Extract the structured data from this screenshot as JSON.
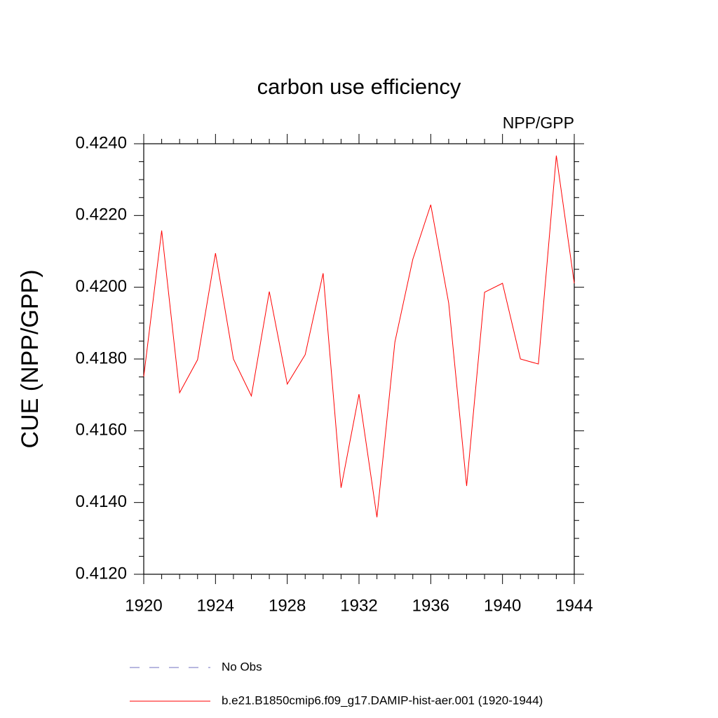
{
  "chart_data": {
    "type": "line",
    "title": "carbon use efficiency",
    "subtitle": "NPP/GPP",
    "y_label": "CUE  (NPP/GPP)",
    "x": [
      1920,
      1921,
      1922,
      1923,
      1924,
      1925,
      1926,
      1927,
      1928,
      1929,
      1930,
      1931,
      1932,
      1933,
      1934,
      1935,
      1936,
      1937,
      1938,
      1939,
      1940,
      1941,
      1942,
      1943,
      1944
    ],
    "series": [
      {
        "name": "b.e21.B1850cmip6.f09_g17.DAMIP-hist-aer.001 (1920-1944)",
        "color": "#ff0000",
        "values": [
          0.41751,
          0.42158,
          0.41706,
          0.41798,
          0.42095,
          0.418,
          0.41697,
          0.41988,
          0.4173,
          0.41812,
          0.42039,
          0.41441,
          0.41702,
          0.41359,
          0.41847,
          0.42078,
          0.4223,
          0.41956,
          0.41446,
          0.41986,
          0.42011,
          0.418,
          0.41786,
          0.42367,
          0.42011
        ]
      }
    ],
    "legend_extra": [
      {
        "name": "No Obs",
        "color": "#7070c0",
        "dashed": true
      }
    ],
    "xlim": [
      1920,
      1944
    ],
    "xticks": [
      1920,
      1924,
      1928,
      1932,
      1936,
      1940,
      1944
    ],
    "xminorticks": [
      1921,
      1922,
      1923,
      1925,
      1926,
      1927,
      1929,
      1930,
      1931,
      1933,
      1934,
      1935,
      1937,
      1938,
      1939,
      1941,
      1942,
      1943
    ],
    "ylim": [
      0.412,
      0.424
    ],
    "yticks": [
      {
        "value": 0.412,
        "label": "0.4120"
      },
      {
        "value": 0.414,
        "label": "0.4140"
      },
      {
        "value": 0.416,
        "label": "0.4160"
      },
      {
        "value": 0.418,
        "label": "0.4180"
      },
      {
        "value": 0.42,
        "label": "0.4200"
      },
      {
        "value": 0.422,
        "label": "0.4220"
      },
      {
        "value": 0.424,
        "label": "0.4240"
      }
    ],
    "yminorticks": [
      0.4125,
      0.413,
      0.4135,
      0.4145,
      0.415,
      0.4155,
      0.4165,
      0.417,
      0.4175,
      0.4185,
      0.419,
      0.4195,
      0.4205,
      0.421,
      0.4215,
      0.4225,
      0.423,
      0.4235
    ]
  }
}
